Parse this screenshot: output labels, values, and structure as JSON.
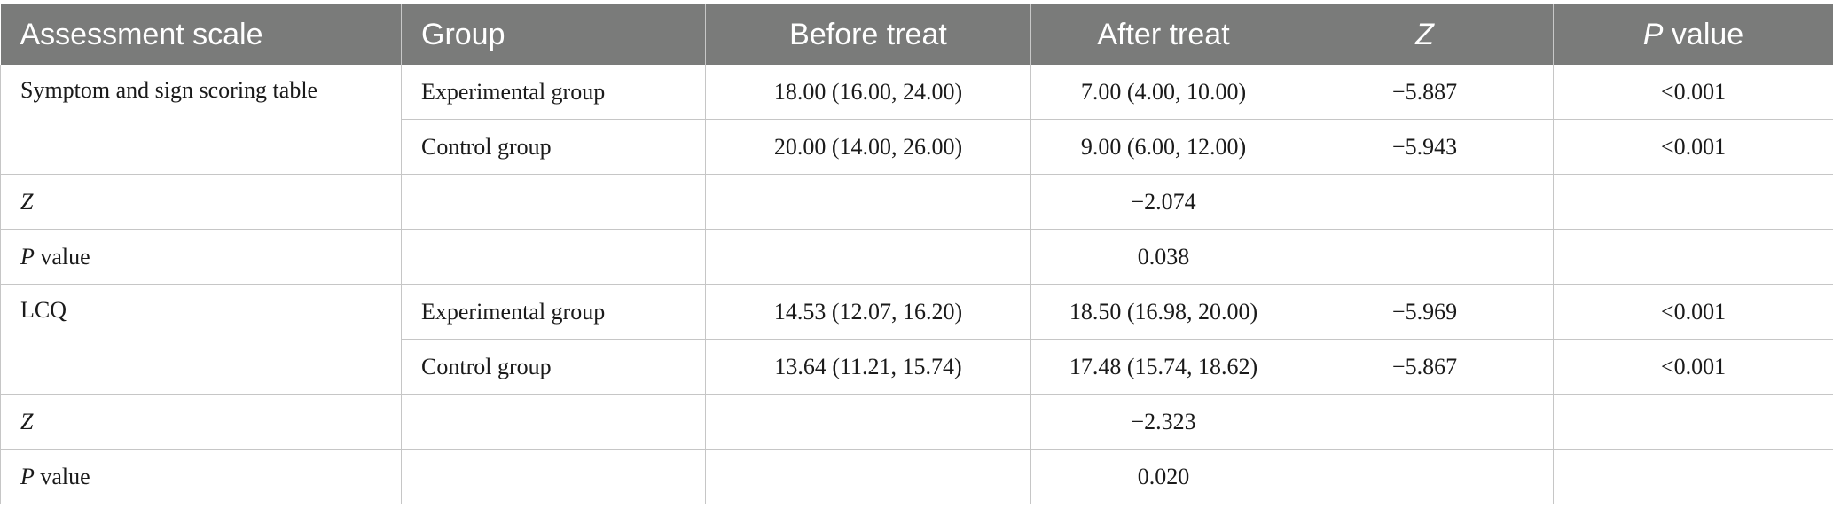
{
  "header": {
    "assessment_scale": "Assessment scale",
    "group": "Group",
    "before_treat": "Before treat",
    "after_treat": "After treat",
    "z": "Z",
    "p_value_italic": "P",
    "p_value_rest": " value"
  },
  "sections": [
    {
      "scale": "Symptom and sign scoring table",
      "groups": [
        {
          "group": "Experimental group",
          "before": "18.00 (16.00, 24.00)",
          "after": "7.00 (4.00, 10.00)",
          "z": "−5.887",
          "p": "<0.001"
        },
        {
          "group": "Control group",
          "before": "20.00 (14.00, 26.00)",
          "after": "9.00 (6.00, 12.00)",
          "z": "−5.943",
          "p": "<0.001"
        }
      ],
      "z_label": "Z",
      "z_value": "−2.074",
      "p_label_italic": "P",
      "p_label_rest": " value",
      "p_value": "0.038"
    },
    {
      "scale": "LCQ",
      "groups": [
        {
          "group": "Experimental group",
          "before": "14.53 (12.07, 16.20)",
          "after": "18.50 (16.98, 20.00)",
          "z": "−5.969",
          "p": "<0.001"
        },
        {
          "group": "Control group",
          "before": "13.64 (11.21, 15.74)",
          "after": "17.48 (15.74, 18.62)",
          "z": "−5.867",
          "p": "<0.001"
        }
      ],
      "z_label": "Z",
      "z_value": "−2.323",
      "p_label_italic": "P",
      "p_label_rest": " value",
      "p_value": "0.020"
    }
  ]
}
